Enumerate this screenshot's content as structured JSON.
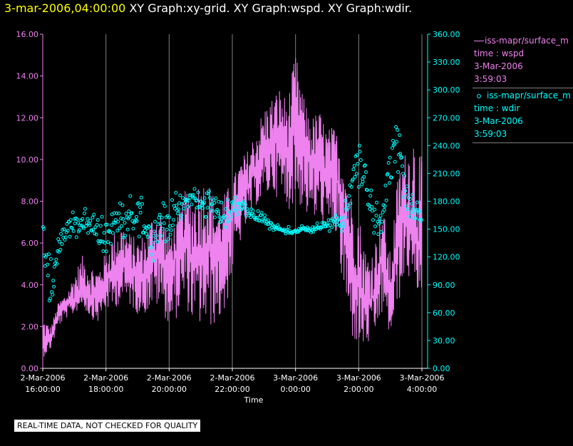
{
  "header": {
    "timestamp": "3-mar-2006,04:00:00",
    "titles": "XY Graph:xy-grid.  XY Graph:wspd.  XY Graph:wdir."
  },
  "legend": {
    "entries": [
      {
        "name": "iss-mapr/surface_m",
        "line2": "time : wspd",
        "date": "3-Mar-2006",
        "time": "3:59:03"
      },
      {
        "name": "iss-mapr/surface_m",
        "line2": "time : wdir",
        "date": "3-Mar-2006",
        "time": "3:59:03"
      }
    ]
  },
  "disclaimer": "REAL-TIME DATA, NOT CHECKED FOR QUALITY",
  "colors": {
    "wspd": "#ee82ee",
    "wdir": "#00ffff",
    "grid": "#808080",
    "axis_text": "#ffffff"
  },
  "chart_data": {
    "type": "line",
    "xlabel": "Time",
    "x_range_hours": [
      16,
      28
    ],
    "x_ticks": [
      {
        "hour": 16,
        "date": "2-Mar-2006",
        "time": "16:00:00"
      },
      {
        "hour": 18,
        "date": "2-Mar-2006",
        "time": "18:00:00"
      },
      {
        "hour": 20,
        "date": "2-Mar-2006",
        "time": "20:00:00"
      },
      {
        "hour": 22,
        "date": "2-Mar-2006",
        "time": "22:00:00"
      },
      {
        "hour": 24,
        "date": "3-Mar-2006",
        "time": "0:00:00"
      },
      {
        "hour": 26,
        "date": "3-Mar-2006",
        "time": "2:00:00"
      },
      {
        "hour": 28,
        "date": "3-Mar-2006",
        "time": "4:00:00"
      }
    ],
    "left_axis": {
      "series": "wspd",
      "ylim": [
        0,
        16
      ],
      "ticks": [
        "0.00",
        "2.00",
        "4.00",
        "6.00",
        "8.00",
        "10.00",
        "12.00",
        "14.00",
        "16.00"
      ]
    },
    "right_axis": {
      "series": "wdir",
      "ylim": [
        0,
        360
      ],
      "ticks": [
        "0.00",
        "30.00",
        "60.00",
        "90.00",
        "120.00",
        "150.00",
        "180.00",
        "210.00",
        "240.00",
        "270.00",
        "300.00",
        "330.00",
        "360.00"
      ]
    },
    "series": [
      {
        "name": "wspd",
        "style": "line",
        "axis": "left",
        "x_hours": [
          16.0,
          16.25,
          16.5,
          16.75,
          17.0,
          17.25,
          17.5,
          17.75,
          18.0,
          18.25,
          18.5,
          18.75,
          19.0,
          19.25,
          19.5,
          19.75,
          20.0,
          20.25,
          20.5,
          20.75,
          21.0,
          21.25,
          21.5,
          21.75,
          22.0,
          22.25,
          22.5,
          22.75,
          23.0,
          23.25,
          23.5,
          23.75,
          24.0,
          24.25,
          24.5,
          24.75,
          25.0,
          25.25,
          25.5,
          25.75,
          26.0,
          26.25,
          26.5,
          26.75,
          27.0,
          27.25,
          27.5,
          27.75,
          28.0
        ],
        "values": [
          1.2,
          1.5,
          2.7,
          3.0,
          3.3,
          4.0,
          3.5,
          3.3,
          4.2,
          4.6,
          5.0,
          4.8,
          4.3,
          4.5,
          5.4,
          5.5,
          4.5,
          5.5,
          6.3,
          5.0,
          5.6,
          6.0,
          5.2,
          5.7,
          7.5,
          8.0,
          8.8,
          9.5,
          10.2,
          10.8,
          11.0,
          10.5,
          11.5,
          11.0,
          9.8,
          10.0,
          9.0,
          9.5,
          7.8,
          5.0,
          4.2,
          3.0,
          3.5,
          5.5,
          3.0,
          6.5,
          7.5,
          6.5,
          5.5
        ],
        "min_env": [
          0.5,
          0.9,
          2.0,
          2.4,
          2.6,
          3.0,
          2.4,
          2.2,
          2.8,
          2.8,
          3.2,
          3.0,
          2.6,
          2.6,
          3.0,
          2.8,
          2.0,
          2.4,
          3.0,
          2.2,
          2.0,
          1.8,
          2.2,
          2.4,
          4.5,
          6.0,
          7.0,
          7.8,
          8.0,
          8.5,
          8.0,
          7.5,
          8.0,
          7.5,
          7.0,
          7.0,
          6.5,
          6.5,
          3.5,
          1.5,
          0.9,
          1.0,
          1.5,
          2.5,
          1.5,
          3.0,
          4.5,
          3.7,
          3.5
        ],
        "max_env": [
          2.5,
          2.0,
          3.2,
          3.6,
          4.6,
          5.4,
          5.0,
          4.8,
          5.6,
          6.5,
          7.0,
          6.5,
          6.2,
          6.5,
          7.5,
          7.5,
          6.5,
          7.2,
          8.5,
          8.5,
          9.2,
          9.0,
          8.0,
          8.4,
          9.0,
          10.0,
          10.5,
          11.5,
          12.5,
          13.0,
          13.5,
          12.8,
          15.2,
          13.0,
          12.0,
          12.4,
          11.5,
          11.6,
          10.4,
          8.5,
          7.5,
          5.5,
          6.0,
          8.0,
          5.5,
          9.5,
          10.5,
          11.6,
          10.0
        ]
      },
      {
        "name": "wdir",
        "style": "scatter",
        "axis": "right",
        "x_hours": [
          16.0,
          16.25,
          16.5,
          16.75,
          17.0,
          17.25,
          17.5,
          17.75,
          18.0,
          18.25,
          18.5,
          18.75,
          19.0,
          19.25,
          19.5,
          19.75,
          20.0,
          20.25,
          20.5,
          20.75,
          21.0,
          21.25,
          21.5,
          21.75,
          22.0,
          22.25,
          22.5,
          22.75,
          23.0,
          23.25,
          23.5,
          23.75,
          24.0,
          24.25,
          24.5,
          24.75,
          25.0,
          25.25,
          25.5,
          25.75,
          26.0,
          26.25,
          26.5,
          26.75,
          27.0,
          27.25,
          27.5,
          27.75,
          28.0
        ],
        "values": [
          140,
          80,
          130,
          150,
          155,
          160,
          155,
          150,
          140,
          155,
          160,
          170,
          160,
          155,
          140,
          150,
          160,
          170,
          180,
          185,
          180,
          175,
          172,
          165,
          172,
          175,
          170,
          165,
          160,
          152,
          150,
          148,
          148,
          150,
          150,
          152,
          155,
          158,
          155,
          195,
          220,
          200,
          160,
          150,
          235,
          245,
          180,
          165,
          160
        ],
        "spread": [
          30,
          40,
          20,
          15,
          20,
          15,
          15,
          20,
          20,
          20,
          25,
          20,
          25,
          30,
          30,
          40,
          30,
          25,
          15,
          10,
          15,
          20,
          15,
          20,
          15,
          12,
          10,
          8,
          8,
          6,
          5,
          5,
          5,
          5,
          5,
          6,
          8,
          10,
          12,
          25,
          30,
          30,
          25,
          20,
          40,
          40,
          25,
          20,
          20
        ]
      }
    ]
  }
}
